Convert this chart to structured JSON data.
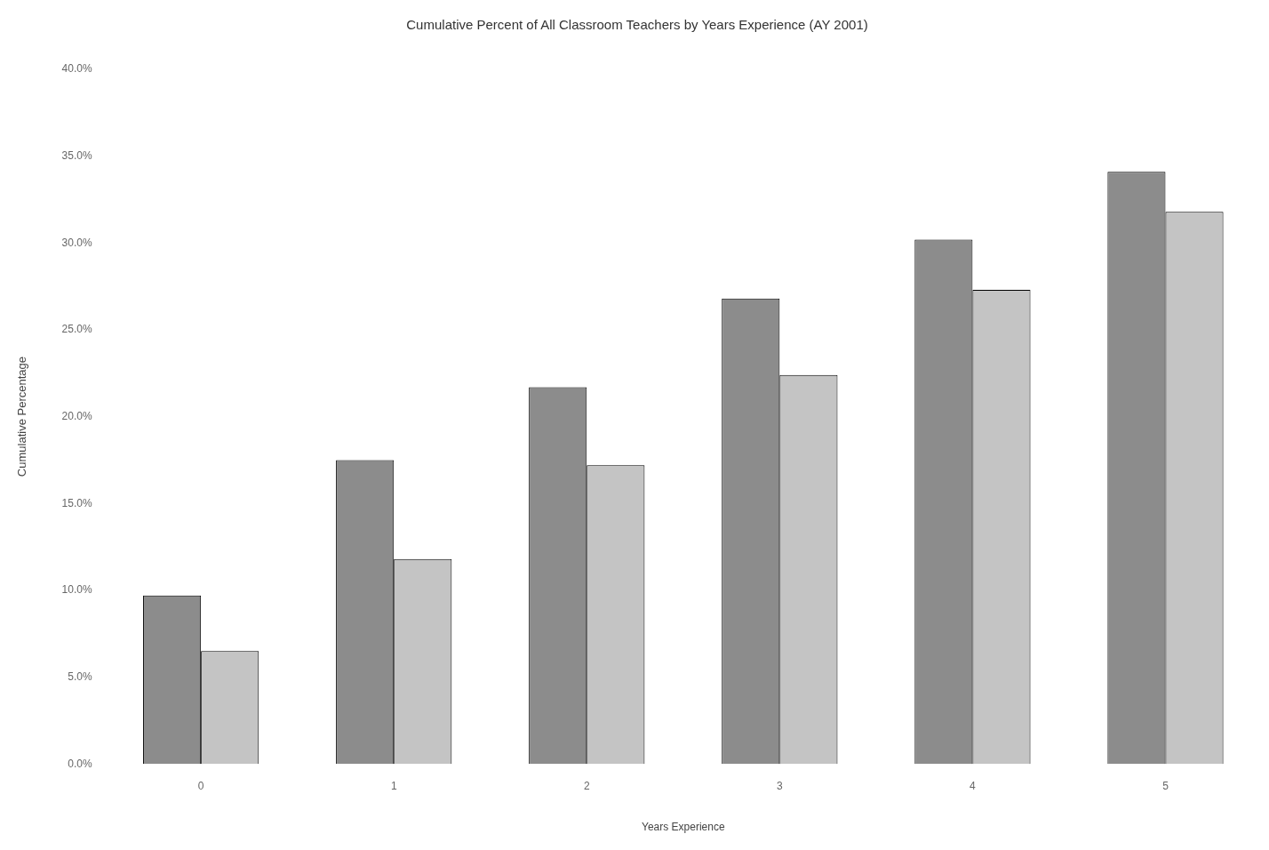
{
  "chart_data": {
    "type": "bar",
    "title": "Cumulative Percent of All Classroom Teachers by Years Experience (AY 2001)",
    "xlabel": "Years Experience",
    "ylabel": "Cumulative Percentage",
    "categories": [
      "0",
      "1",
      "2",
      "3",
      "4",
      "5"
    ],
    "series": [
      {
        "color": "#8c8c8c",
        "values": [
          9.7,
          17.5,
          21.7,
          26.8,
          30.2,
          34.1
        ]
      },
      {
        "color": "#c4c4c4",
        "values": [
          6.5,
          11.8,
          17.2,
          22.4,
          27.3,
          31.8
        ]
      }
    ],
    "ylim": [
      0,
      40
    ],
    "yticks": [
      {
        "value": 0,
        "label": "0.0%"
      },
      {
        "value": 5,
        "label": "5.0%"
      },
      {
        "value": 10,
        "label": "10.0%"
      },
      {
        "value": 15,
        "label": "15.0%"
      },
      {
        "value": 20,
        "label": "20.0%"
      },
      {
        "value": 25,
        "label": "25.0%"
      },
      {
        "value": 30,
        "label": "30.0%"
      },
      {
        "value": 35,
        "label": "35.0%"
      },
      {
        "value": 40,
        "label": "40.0%"
      }
    ],
    "grid": false
  }
}
